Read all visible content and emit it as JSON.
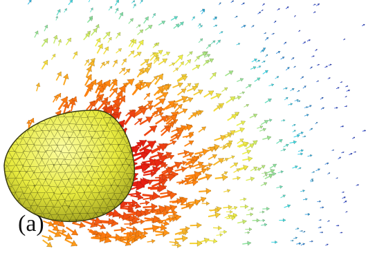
{
  "figure": {
    "panel_label": "(a)"
  },
  "colors": {
    "background": "#ffffff",
    "body_fill": "#e7ea3e",
    "body_mesh": "#2c2f0c",
    "arrow_near": "#e61e12",
    "arrow_mid": "#ff8a10",
    "arrow_far1": "#eef04a",
    "arrow_far2": "#33d6e8",
    "arrow_far3": "#1a3bd6"
  },
  "icons": {
    "body": "ellipsoidal-mesh-body",
    "field": "velocity-arrow-field"
  }
}
